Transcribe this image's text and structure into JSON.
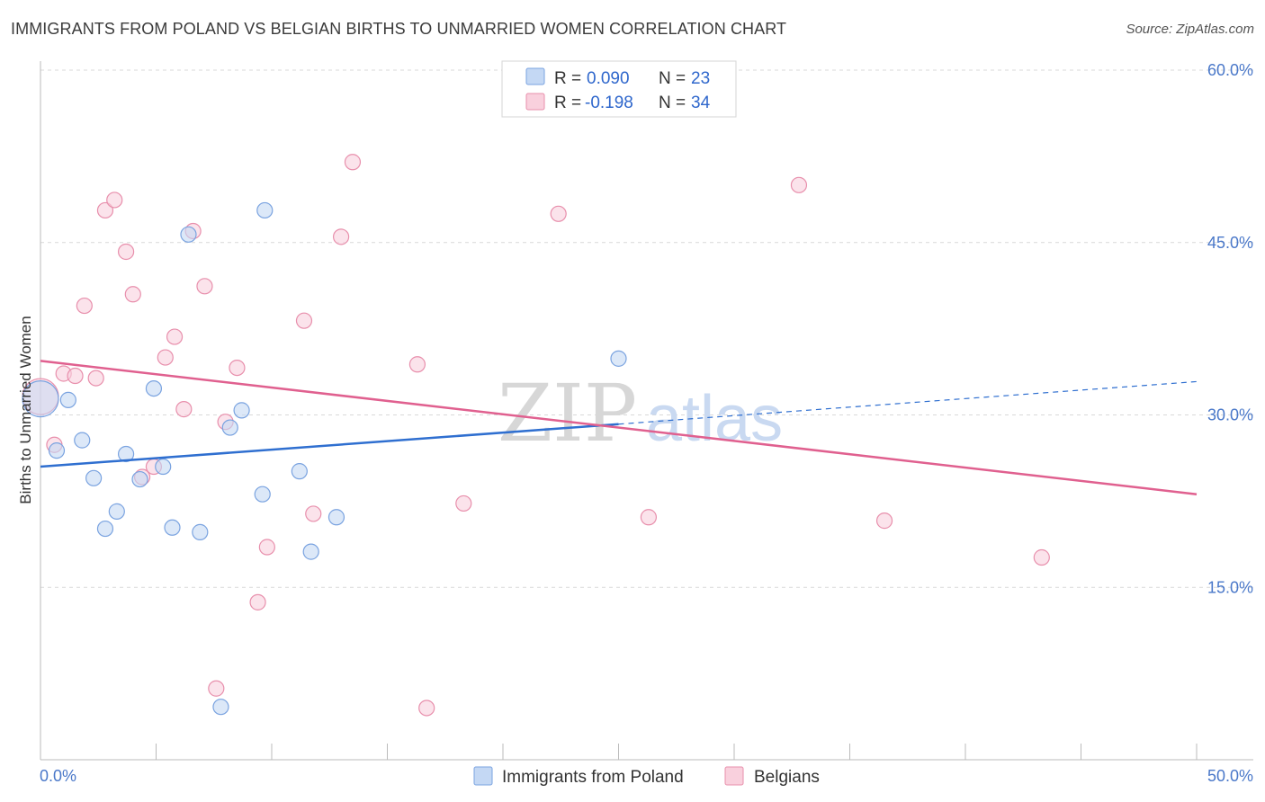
{
  "title": "IMMIGRANTS FROM POLAND VS BELGIAN BIRTHS TO UNMARRIED WOMEN CORRELATION CHART",
  "source": "Source: ZipAtlas.com",
  "watermark": {
    "zip": "ZIP",
    "atlas": "atlas"
  },
  "legend_top": {
    "rows": [
      {
        "r_label": "R = ",
        "r_value": "0.090",
        "n_label": "N = ",
        "n_value": "23"
      },
      {
        "r_label": "R = ",
        "r_value": "-0.198",
        "n_label": "N = ",
        "n_value": "34"
      }
    ]
  },
  "colors": {
    "poland_fill": "#c4d8f4",
    "poland_stroke": "#7aa3e0",
    "poland_line": "#2f6fd0",
    "belgian_fill": "#f9d0dd",
    "belgian_stroke": "#e88fac",
    "belgian_line": "#e0608f",
    "grid": "#d9d9d9",
    "axis": "#bbbbbb"
  },
  "chart_data": {
    "type": "scatter",
    "title": "IMMIGRANTS FROM POLAND VS BELGIAN BIRTHS TO UNMARRIED WOMEN CORRELATION CHART",
    "xlabel": "",
    "ylabel": "Births to Unmarried Women",
    "xlim": [
      0,
      50
    ],
    "ylim": [
      0,
      60
    ],
    "x_tick_labels": [
      "0.0%",
      "50.0%"
    ],
    "y_ticks": [
      15,
      30,
      45,
      60
    ],
    "y_tick_labels": [
      "15.0%",
      "30.0%",
      "45.0%",
      "60.0%"
    ],
    "series": [
      {
        "name": "Immigrants from Poland",
        "r": 0.09,
        "n": 23,
        "trend": {
          "x0": 0,
          "y0": 25.5,
          "x1": 25,
          "y1": 29.2,
          "dashed_to_x": 50,
          "dashed_to_y": 32.9
        },
        "points": [
          {
            "x": 0.0,
            "y": 31.4,
            "big": true
          },
          {
            "x": 0.7,
            "y": 26.9
          },
          {
            "x": 1.2,
            "y": 31.3
          },
          {
            "x": 1.8,
            "y": 27.8
          },
          {
            "x": 2.3,
            "y": 24.5
          },
          {
            "x": 2.8,
            "y": 20.1
          },
          {
            "x": 3.3,
            "y": 21.6
          },
          {
            "x": 3.7,
            "y": 26.6
          },
          {
            "x": 4.3,
            "y": 24.4
          },
          {
            "x": 4.9,
            "y": 32.3
          },
          {
            "x": 5.3,
            "y": 25.5
          },
          {
            "x": 5.7,
            "y": 20.2
          },
          {
            "x": 6.4,
            "y": 45.7
          },
          {
            "x": 6.9,
            "y": 19.8
          },
          {
            "x": 8.2,
            "y": 28.9
          },
          {
            "x": 8.7,
            "y": 30.4
          },
          {
            "x": 9.6,
            "y": 23.1
          },
          {
            "x": 9.7,
            "y": 47.8
          },
          {
            "x": 11.2,
            "y": 25.1
          },
          {
            "x": 11.7,
            "y": 18.1
          },
          {
            "x": 12.8,
            "y": 21.1
          },
          {
            "x": 7.8,
            "y": 4.6
          },
          {
            "x": 25.0,
            "y": 34.9
          }
        ]
      },
      {
        "name": "Belgians",
        "r": -0.198,
        "n": 34,
        "trend": {
          "x0": 0,
          "y0": 34.7,
          "x1": 50,
          "y1": 23.1
        },
        "points": [
          {
            "x": 0.0,
            "y": 31.6,
            "big": true
          },
          {
            "x": 0.6,
            "y": 27.4
          },
          {
            "x": 1.0,
            "y": 33.6
          },
          {
            "x": 1.5,
            "y": 33.4
          },
          {
            "x": 1.9,
            "y": 39.5
          },
          {
            "x": 2.4,
            "y": 33.2
          },
          {
            "x": 2.8,
            "y": 47.8
          },
          {
            "x": 3.2,
            "y": 48.7
          },
          {
            "x": 3.7,
            "y": 44.2
          },
          {
            "x": 4.0,
            "y": 40.5
          },
          {
            "x": 4.4,
            "y": 24.6
          },
          {
            "x": 4.9,
            "y": 25.5
          },
          {
            "x": 5.4,
            "y": 35.0
          },
          {
            "x": 5.8,
            "y": 36.8
          },
          {
            "x": 6.2,
            "y": 30.5
          },
          {
            "x": 6.6,
            "y": 46.0
          },
          {
            "x": 7.1,
            "y": 41.2
          },
          {
            "x": 7.6,
            "y": 6.2
          },
          {
            "x": 8.0,
            "y": 29.4
          },
          {
            "x": 8.5,
            "y": 34.1
          },
          {
            "x": 9.4,
            "y": 13.7
          },
          {
            "x": 9.8,
            "y": 18.5
          },
          {
            "x": 11.4,
            "y": 38.2
          },
          {
            "x": 11.8,
            "y": 21.4
          },
          {
            "x": 13.0,
            "y": 45.5
          },
          {
            "x": 13.5,
            "y": 52.0
          },
          {
            "x": 16.3,
            "y": 34.4
          },
          {
            "x": 16.7,
            "y": 4.5
          },
          {
            "x": 18.3,
            "y": 22.3
          },
          {
            "x": 22.4,
            "y": 47.5
          },
          {
            "x": 26.3,
            "y": 21.1
          },
          {
            "x": 32.8,
            "y": 50.0
          },
          {
            "x": 36.5,
            "y": 20.8
          },
          {
            "x": 43.3,
            "y": 17.6
          }
        ]
      }
    ],
    "legend": [
      "Immigrants from Poland",
      "Belgians"
    ]
  }
}
